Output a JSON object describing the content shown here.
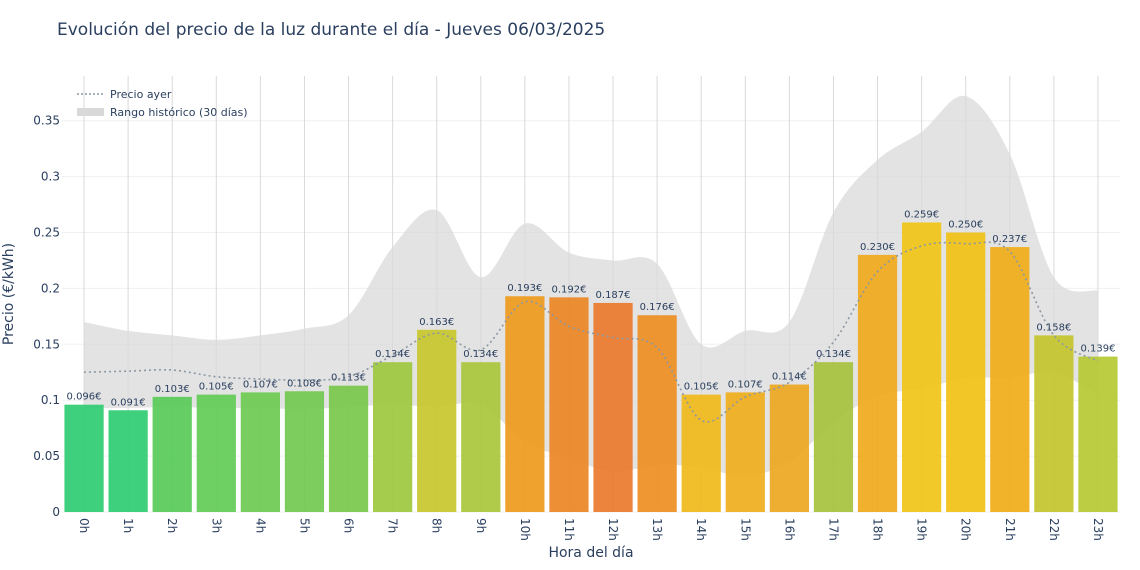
{
  "chart_data": {
    "type": "bar",
    "title": "Evolución del precio de la luz durante el día - Jueves 06/03/2025",
    "xlabel": "Hora del día",
    "ylabel": "Precio (€/kWh)",
    "ylim": [
      0,
      0.39
    ],
    "yticks": [
      "0",
      "0.05",
      "0.1",
      "0.15",
      "0.2",
      "0.25",
      "0.3",
      "0.35"
    ],
    "categories": [
      "0h",
      "1h",
      "2h",
      "3h",
      "4h",
      "5h",
      "6h",
      "7h",
      "8h",
      "9h",
      "10h",
      "11h",
      "12h",
      "13h",
      "14h",
      "15h",
      "16h",
      "17h",
      "18h",
      "19h",
      "20h",
      "21h",
      "22h",
      "23h"
    ],
    "values": [
      0.096,
      0.091,
      0.103,
      0.105,
      0.107,
      0.108,
      0.113,
      0.134,
      0.163,
      0.134,
      0.193,
      0.192,
      0.187,
      0.176,
      0.105,
      0.107,
      0.114,
      0.134,
      0.23,
      0.259,
      0.25,
      0.237,
      0.158,
      0.139
    ],
    "value_labels": [
      "0.096€",
      "0.091€",
      "0.103€",
      "0.105€",
      "0.107€",
      "0.108€",
      "0.113€",
      "0.134€",
      "0.163€",
      "0.134€",
      "0.193€",
      "0.192€",
      "0.187€",
      "0.176€",
      "0.105€",
      "0.107€",
      "0.114€",
      "0.134€",
      "0.230€",
      "0.259€",
      "0.250€",
      "0.237€",
      "0.158€",
      "0.139€"
    ],
    "bar_colors": [
      "#2ecc71",
      "#2ecc71",
      "#58cb59",
      "#62cb55",
      "#6ccb51",
      "#71c94f",
      "#78c84c",
      "#9ec83e",
      "#c8c52c",
      "#a9c63a",
      "#ef9a1c",
      "#ec8524",
      "#ea7a2c",
      "#ee8e22",
      "#f0b91a",
      "#efae1d",
      "#eda720",
      "#a5c23c",
      "#f0a91b",
      "#f0c417",
      "#f1c114",
      "#f0ad18",
      "#c3c42c",
      "#b6c833"
    ],
    "series": [
      {
        "name": "Precio ayer",
        "style": "dotted",
        "color": "#8c98a4",
        "values": [
          0.125,
          0.126,
          0.127,
          0.121,
          0.119,
          0.118,
          0.121,
          0.14,
          0.16,
          0.145,
          0.188,
          0.166,
          0.156,
          0.147,
          0.082,
          0.103,
          0.116,
          0.152,
          0.215,
          0.238,
          0.24,
          0.233,
          0.158,
          0.135
        ]
      },
      {
        "name": "Rango histórico (30 días)",
        "type": "area",
        "color": "#d9d9d9",
        "upper": [
          0.17,
          0.162,
          0.158,
          0.154,
          0.158,
          0.164,
          0.176,
          0.237,
          0.27,
          0.21,
          0.258,
          0.232,
          0.225,
          0.222,
          0.15,
          0.162,
          0.17,
          0.268,
          0.315,
          0.34,
          0.372,
          0.32,
          0.21,
          0.198
        ],
        "lower": [
          0.093,
          0.093,
          0.094,
          0.093,
          0.093,
          0.092,
          0.094,
          0.096,
          0.094,
          0.096,
          0.063,
          0.048,
          0.036,
          0.042,
          0.04,
          0.032,
          0.045,
          0.08,
          0.104,
          0.11,
          0.12,
          0.12,
          0.125,
          0.105
        ]
      }
    ],
    "legend_position": "top-left",
    "grid": true
  }
}
